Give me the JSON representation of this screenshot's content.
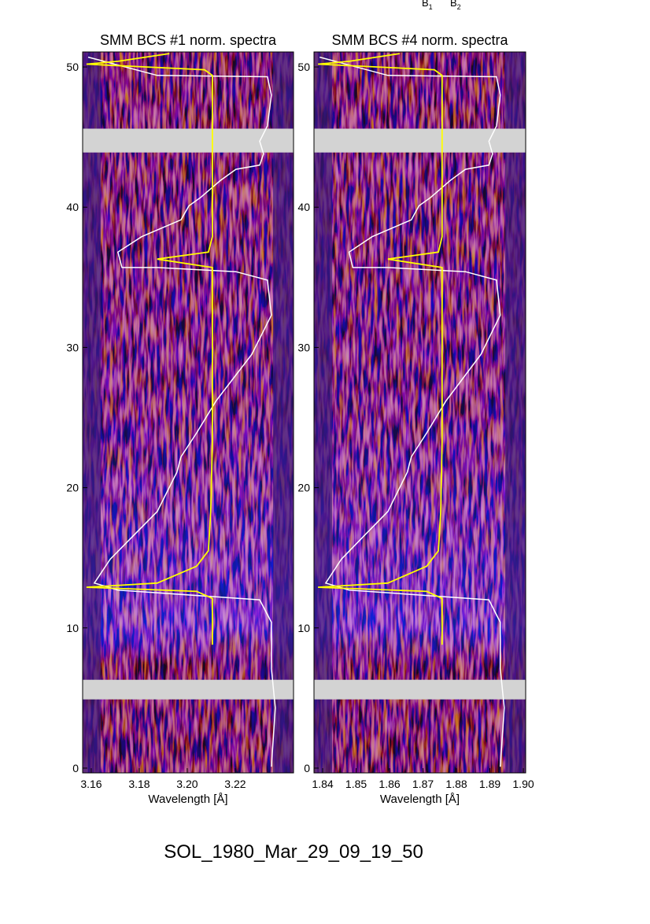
{
  "annotations": [
    {
      "text": "B",
      "sub": "1"
    },
    {
      "text": "B",
      "sub": "2"
    }
  ],
  "chart_data": [
    {
      "type": "line",
      "title": "SMM BCS #1 norm. spectra",
      "x_label": "Wavelength [Å]",
      "xlim": [
        3.1564,
        3.2443
      ],
      "xticks": [
        3.16,
        3.18,
        {
          "value": 3.2,
          "label": "3.20"
        },
        3.22
      ],
      "ylim": [
        -0.34,
        51.07
      ],
      "yticks": [
        0,
        10,
        20,
        30,
        40,
        50
      ],
      "gaps": [
        [
          43.9,
          45.6
        ],
        [
          4.9,
          6.3
        ]
      ],
      "series": [
        {
          "color": "#ffffff",
          "x": [
            3.1587,
            3.1875,
            3.2334,
            3.2351,
            3.2334,
            3.2302,
            3.2318,
            3.2302,
            3.2203,
            3.2138,
            3.2056,
            3.2007,
            3.1974,
            3.181,
            3.1711,
            3.1728,
            3.1875,
            3.2203,
            3.2334,
            3.2351,
            3.2269,
            3.217,
            3.2121,
            3.2039,
            3.1974,
            3.1957,
            3.1875,
            3.1777,
            3.1679,
            3.1613,
            3.1711,
            3.2302,
            3.2351,
            3.2351,
            3.2367,
            3.2351
          ],
          "values": [
            50.7,
            49.4,
            49.3,
            48.0,
            45.8,
            44.7,
            43.8,
            43.0,
            42.7,
            41.9,
            40.7,
            40.1,
            39.1,
            37.9,
            36.8,
            35.7,
            35.7,
            35.4,
            34.8,
            32.3,
            29.5,
            27.3,
            26.2,
            23.9,
            22.2,
            21.1,
            18.3,
            16.6,
            14.9,
            13.2,
            12.7,
            12.0,
            10.4,
            7.1,
            4.3,
            0.1
          ]
        },
        {
          "color": "#ffff00",
          "x": [
            3.1925,
            3.1711,
            3.158,
            3.2072,
            3.2105,
            3.2105,
            3.2105,
            3.2088,
            3.1875,
            3.2105,
            3.2105,
            3.2098,
            3.2088,
            3.2039,
            3.1875,
            3.158,
            3.2039,
            3.2105,
            3.2105
          ],
          "values": [
            50.95,
            50.4,
            50.2,
            49.8,
            49.4,
            46.4,
            37.9,
            36.8,
            36.3,
            35.7,
            23.3,
            18.3,
            15.5,
            14.4,
            13.2,
            12.9,
            12.6,
            12.1,
            8.8
          ]
        }
      ]
    },
    {
      "type": "line",
      "title": "SMM BCS #4 norm. spectra",
      "x_label": "Wavelength [Å]",
      "xlim": [
        1.8374,
        1.9007
      ],
      "xticks": [
        1.84,
        1.85,
        1.86,
        1.87,
        1.88,
        1.89,
        {
          "value": 1.9,
          "label": "1.90"
        }
      ],
      "ylim": [
        -0.34,
        51.07
      ],
      "yticks": [
        0,
        10,
        20,
        30,
        40,
        50
      ],
      "gaps": [
        [
          43.9,
          45.6
        ],
        [
          4.9,
          6.3
        ]
      ],
      "series": [
        {
          "color": "#ffffff",
          "x": [
            1.8391,
            1.8595,
            1.892,
            1.8931,
            1.892,
            1.8897,
            1.8908,
            1.8897,
            1.8827,
            1.8781,
            1.8723,
            1.8688,
            1.8665,
            1.8548,
            1.8479,
            1.849,
            1.8595,
            1.8827,
            1.892,
            1.8931,
            1.8873,
            1.8804,
            1.8769,
            1.8711,
            1.8665,
            1.8653,
            1.8595,
            1.8525,
            1.8456,
            1.8409,
            1.8479,
            1.8897,
            1.8931,
            1.8931,
            1.8943,
            1.8931
          ],
          "values": [
            50.7,
            49.4,
            49.3,
            48.0,
            45.8,
            44.7,
            43.8,
            43.0,
            42.7,
            41.9,
            40.7,
            40.1,
            39.1,
            37.9,
            36.8,
            35.7,
            35.7,
            35.4,
            34.8,
            32.3,
            29.5,
            27.3,
            26.2,
            23.9,
            22.2,
            21.1,
            18.3,
            16.6,
            14.9,
            13.2,
            12.7,
            12.0,
            10.4,
            7.1,
            4.3,
            0.1
          ]
        },
        {
          "color": "#ffff00",
          "x": [
            1.863,
            1.8479,
            1.8386,
            1.8734,
            1.8757,
            1.8757,
            1.8757,
            1.8746,
            1.8595,
            1.8757,
            1.8757,
            1.8753,
            1.8746,
            1.8711,
            1.8595,
            1.8386,
            1.8711,
            1.8757,
            1.8757
          ],
          "values": [
            50.95,
            50.4,
            50.2,
            49.8,
            49.4,
            46.4,
            37.9,
            36.8,
            36.3,
            35.7,
            23.3,
            18.3,
            15.5,
            14.4,
            13.2,
            12.9,
            12.6,
            12.1,
            8.8
          ]
        }
      ]
    }
  ],
  "footer": "SOL_1980_Mar_29_09_19_50"
}
